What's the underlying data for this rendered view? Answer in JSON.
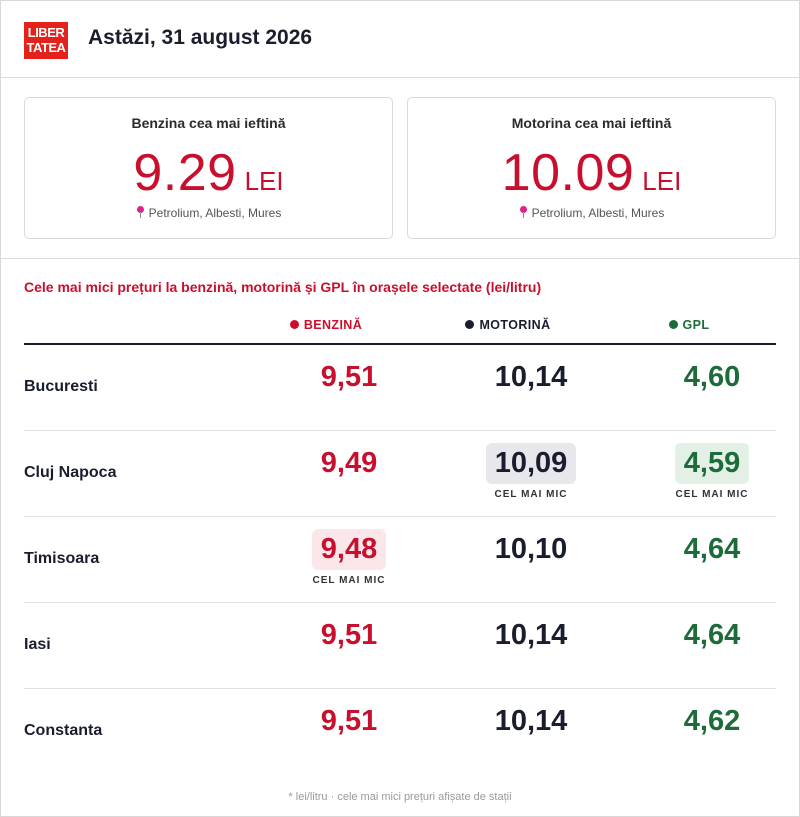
{
  "header": {
    "logo_line1": "LIBER",
    "logo_line2": "TATEA",
    "title": "Astăzi, 31 august 2026"
  },
  "cards": [
    {
      "label": "Benzina cea mai ieftină",
      "price": "9.29",
      "unit": "LEI",
      "location": "Petrolium, Albesti, Mures"
    },
    {
      "label": "Motorina cea mai ieftină",
      "price": "10.09",
      "unit": "LEI",
      "location": "Petrolium, Albesti, Mures"
    }
  ],
  "section_title": "Cele mai mici prețuri la benzină, motorină și GPL în orașele selectate (lei/litru)",
  "columns": {
    "benzina": "BENZINĂ",
    "motorina": "MOTORINĂ",
    "gpl": "GPL"
  },
  "colors": {
    "benzina": "#c8102e",
    "motorina": "#1a1d2e",
    "gpl": "#1e6b3a"
  },
  "best_label": "CEL MAI MIC",
  "rows": [
    {
      "city": "Bucuresti",
      "benzina": "9,51",
      "motorina": "10,14",
      "gpl": "4,60",
      "best": []
    },
    {
      "city": "Cluj Napoca",
      "benzina": "9,49",
      "motorina": "10,09",
      "gpl": "4,59",
      "best": [
        "motorina",
        "gpl"
      ]
    },
    {
      "city": "Timisoara",
      "benzina": "9,48",
      "motorina": "10,10",
      "gpl": "4,64",
      "best": [
        "benzina"
      ]
    },
    {
      "city": "Iasi",
      "benzina": "9,51",
      "motorina": "10,14",
      "gpl": "4,64",
      "best": []
    },
    {
      "city": "Constanta",
      "benzina": "9,51",
      "motorina": "10,14",
      "gpl": "4,62",
      "best": []
    }
  ],
  "footnote": "* lei/litru · cele mai mici prețuri afișate de stații"
}
